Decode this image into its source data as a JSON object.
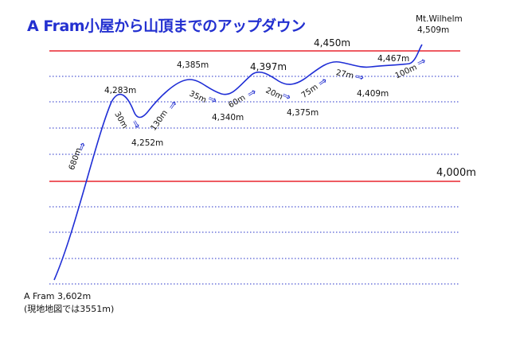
{
  "title": "A Fram小屋から山頂までのアップダウン",
  "colors": {
    "curve": "#1f2ed6",
    "guide_red": "#e8252f",
    "grid_blue": "#2430c8",
    "text": "#111111"
  },
  "start_note": {
    "line1": "A Fram 3,602m",
    "line2": "(現地地図では3551m)"
  },
  "summit": {
    "name": "Mt.Wilhelm",
    "elev": "4,509m"
  },
  "reference_lines": [
    {
      "label": "4,450m"
    },
    {
      "label": "4,000m"
    }
  ],
  "points": [
    {
      "label": "4,283m"
    },
    {
      "label": "4,252m"
    },
    {
      "label": "4,385m"
    },
    {
      "label": "4,340m"
    },
    {
      "label": "4,397m"
    },
    {
      "label": "4,375m"
    },
    {
      "label": "4,409m"
    },
    {
      "label": "4,467m"
    }
  ],
  "segments": [
    {
      "label": "680m"
    },
    {
      "label": "30m"
    },
    {
      "label": "130m"
    },
    {
      "label": "35m"
    },
    {
      "label": "60m"
    },
    {
      "label": "20m"
    },
    {
      "label": "75m"
    },
    {
      "label": "27m"
    },
    {
      "label": "100m"
    }
  ]
}
